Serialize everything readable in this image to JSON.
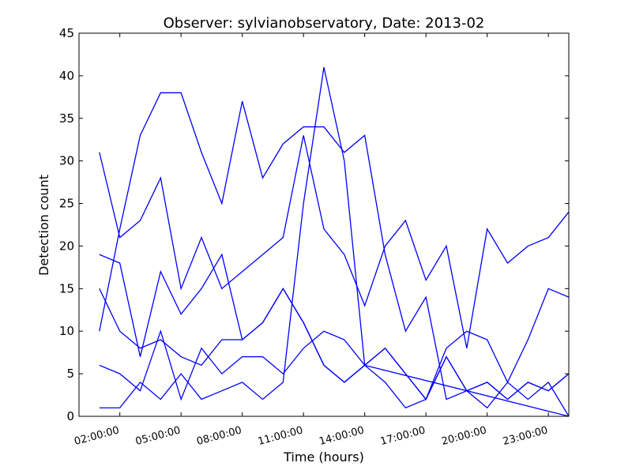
{
  "chart_data": {
    "type": "line",
    "title": "Observer: sylvianobservatory, Date: 2013-02",
    "xlabel": "Time (hours)",
    "ylabel": "Detection count",
    "xlim": [
      "00:00:00",
      "24:00:00"
    ],
    "ylim": [
      0,
      45
    ],
    "yticks": [
      0,
      5,
      10,
      15,
      20,
      25,
      30,
      35,
      40,
      45
    ],
    "xticks": [
      "02:00:00",
      "05:00:00",
      "08:00:00",
      "11:00:00",
      "14:00:00",
      "17:00:00",
      "20:00:00",
      "23:00:00"
    ],
    "grid": false,
    "legend": "none",
    "line_color": "#0000ff",
    "series": [
      {
        "x": [
          "01:00:00",
          "02:00:00",
          "03:00:00",
          "04:00:00",
          "05:00:00",
          "06:00:00",
          "07:00:00",
          "08:00:00",
          "09:00:00",
          "10:00:00",
          "11:00:00",
          "12:00:00",
          "13:00:00",
          "14:00:00",
          "15:00:00",
          "16:00:00",
          "17:00:00",
          "18:00:00",
          "19:00:00",
          "20:00:00",
          "21:00:00",
          "22:00:00",
          "23:00:00",
          "24:00:00"
        ],
        "values": [
          31,
          21,
          23,
          28,
          15,
          21,
          15,
          17,
          19,
          21,
          33,
          22,
          19,
          13,
          20,
          23,
          16,
          20,
          8,
          22,
          18,
          20,
          21,
          24
        ]
      },
      {
        "x": [
          "01:00:00",
          "02:00:00",
          "03:00:00",
          "04:00:00",
          "05:00:00",
          "06:00:00",
          "07:00:00",
          "08:00:00",
          "09:00:00",
          "10:00:00",
          "11:00:00",
          "12:00:00",
          "13:00:00",
          "14:00:00",
          "15:00:00",
          "16:00:00",
          "17:00:00",
          "18:00:00",
          "19:00:00",
          "20:00:00",
          "21:00:00",
          "22:00:00",
          "23:00:00",
          "24:00:00"
        ],
        "values": [
          10,
          22,
          33,
          38,
          38,
          31,
          25,
          37,
          28,
          32,
          34,
          34,
          31,
          33,
          19,
          10,
          14,
          2,
          3,
          4,
          2,
          4,
          3,
          5
        ]
      },
      {
        "x": [
          "01:00:00",
          "02:00:00",
          "03:00:00",
          "04:00:00",
          "05:00:00",
          "06:00:00",
          "07:00:00",
          "08:00:00",
          "09:00:00",
          "10:00:00",
          "11:00:00",
          "12:00:00",
          "13:00:00",
          "14:00:00",
          "15:00:00",
          "16:00:00",
          "17:00:00",
          "18:00:00",
          "19:00:00",
          "20:00:00",
          "21:00:00",
          "22:00:00",
          "23:00:00",
          "24:00:00"
        ],
        "values": [
          19,
          18,
          7,
          17,
          12,
          15,
          19,
          9,
          11,
          15,
          11,
          6,
          4,
          6,
          8,
          5,
          2,
          8,
          10,
          9,
          4,
          9,
          15,
          14
        ]
      },
      {
        "x": [
          "01:00:00",
          "02:00:00",
          "03:00:00",
          "04:00:00",
          "05:00:00",
          "06:00:00",
          "07:00:00",
          "08:00:00",
          "09:00:00",
          "10:00:00",
          "11:00:00",
          "12:00:00",
          "13:00:00",
          "14:00:00",
          "15:00:00",
          "16:00:00",
          "17:00:00",
          "18:00:00",
          "19:00:00",
          "20:00:00",
          "21:00:00",
          "22:00:00",
          "23:00:00",
          "24:00:00"
        ],
        "values": [
          15,
          10,
          8,
          9,
          7,
          6,
          9,
          9,
          11,
          15,
          11,
          6,
          4,
          6,
          8,
          5,
          2,
          7,
          3,
          4,
          2,
          4,
          3,
          5
        ]
      },
      {
        "x": [
          "01:00:00",
          "02:00:00",
          "03:00:00",
          "04:00:00",
          "05:00:00",
          "06:00:00",
          "07:00:00",
          "08:00:00",
          "09:00:00",
          "10:00:00",
          "11:00:00",
          "12:00:00",
          "13:00:00",
          "14:00:00",
          "15:00:00",
          "16:00:00",
          "17:00:00",
          "18:00:00",
          "19:00:00",
          "20:00:00",
          "21:00:00",
          "22:00:00",
          "23:00:00",
          "24:00:00"
        ],
        "values": [
          6,
          5,
          3,
          10,
          2,
          8,
          5,
          7,
          7,
          5,
          8,
          10,
          9,
          6,
          4,
          1,
          2,
          7,
          3,
          1,
          4,
          2,
          4,
          0
        ]
      },
      {
        "x": [
          "01:00:00",
          "02:00:00",
          "03:00:00",
          "04:00:00",
          "05:00:00",
          "06:00:00",
          "07:00:00",
          "08:00:00",
          "09:00:00",
          "10:00:00",
          "11:00:00",
          "12:00:00",
          "13:00:00",
          "14:00:00",
          "24:00:00"
        ],
        "values": [
          1,
          1,
          4,
          2,
          5,
          2,
          3,
          4,
          2,
          4,
          25,
          41,
          30,
          6,
          0
        ]
      }
    ]
  }
}
